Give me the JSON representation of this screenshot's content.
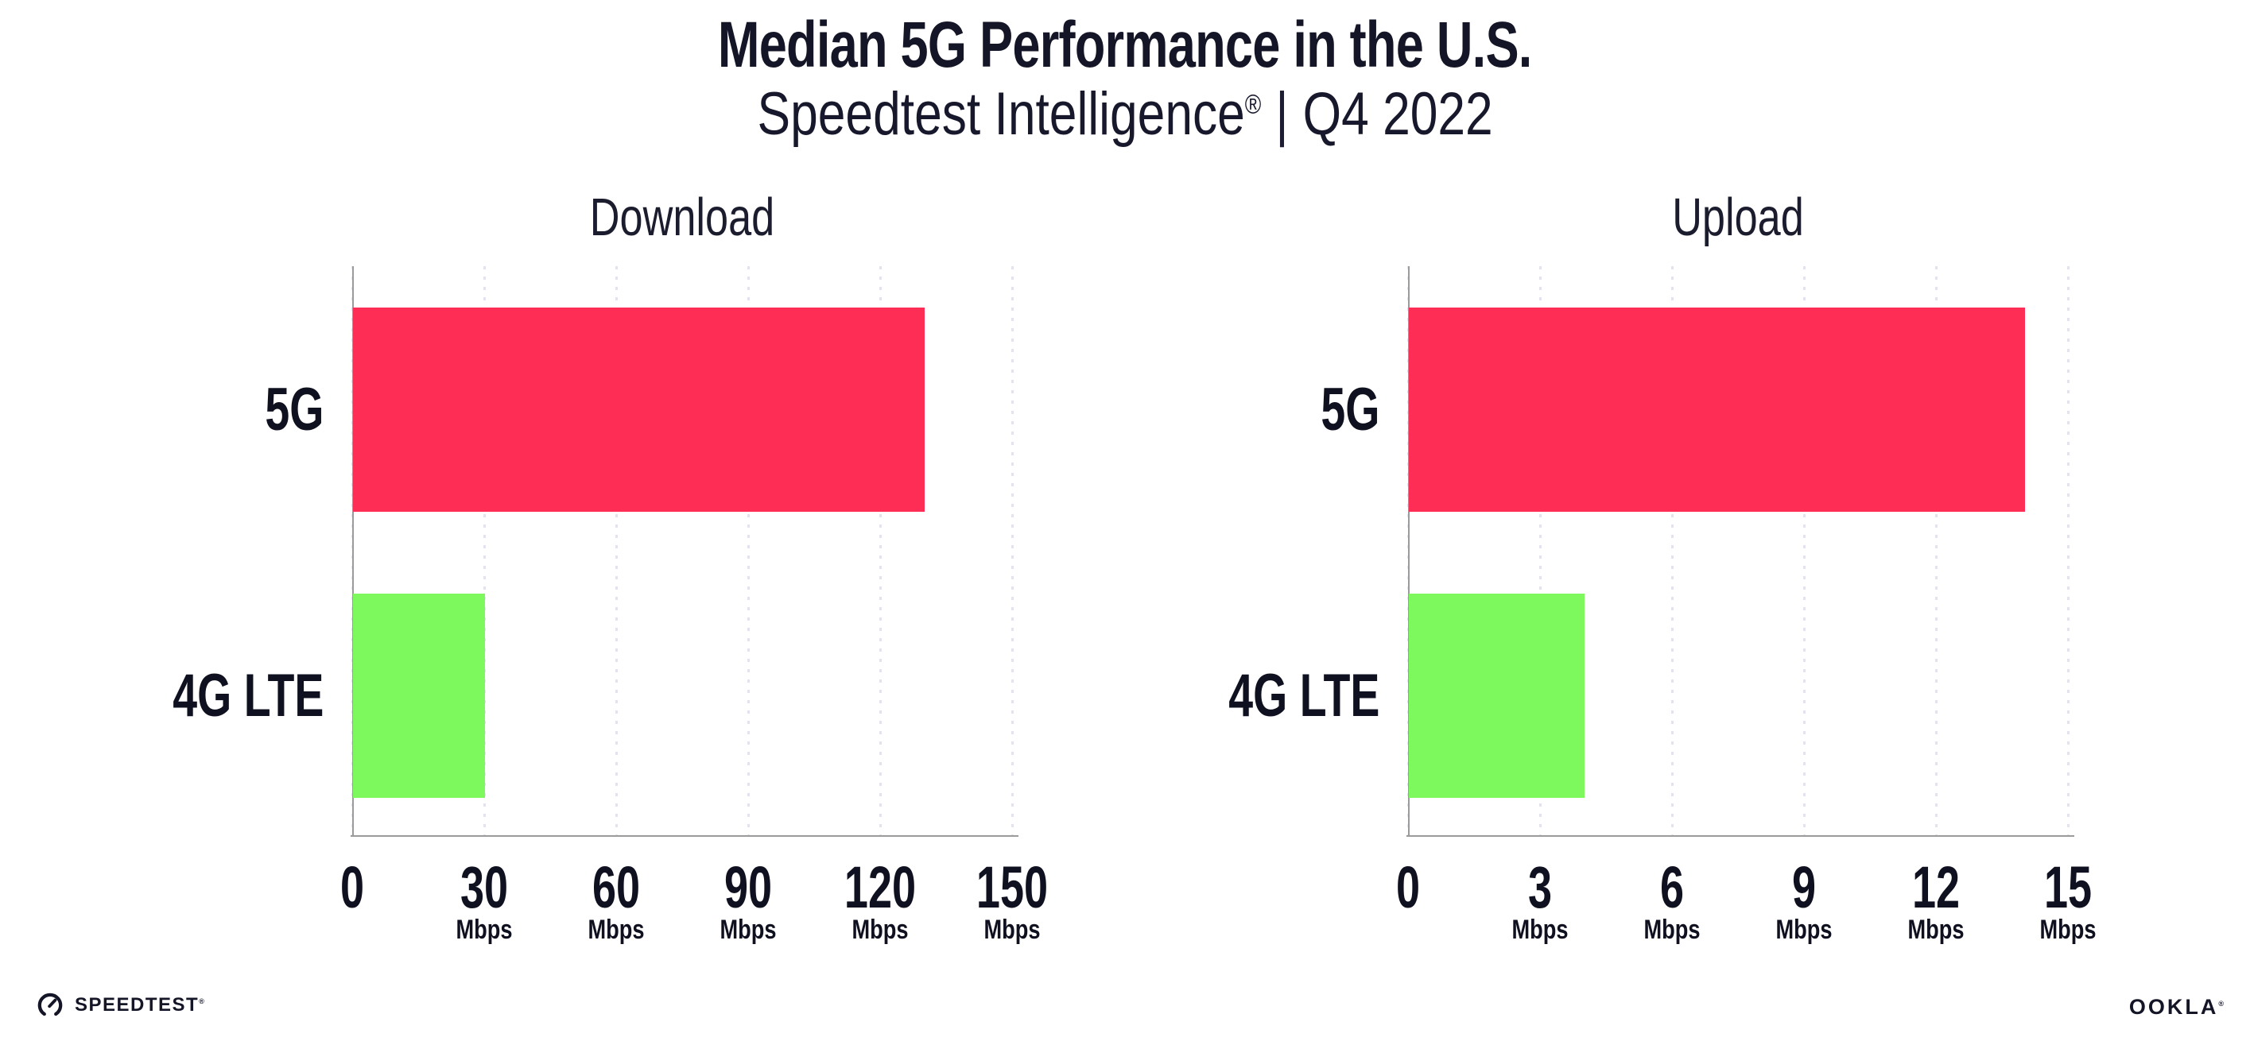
{
  "header": {
    "title": "Median 5G Performance in the U.S.",
    "subtitle_brand": "Speedtest Intelligence",
    "subtitle_registered": "®",
    "subtitle_separator": "|",
    "subtitle_period": "Q4 2022"
  },
  "chart_data": [
    {
      "type": "bar",
      "orientation": "horizontal",
      "title": "Download",
      "categories": [
        "5G",
        "4G LTE"
      ],
      "values": [
        130,
        30
      ],
      "unit": "Mbps",
      "xlim": [
        0,
        150
      ],
      "xticks": [
        0,
        30,
        60,
        90,
        120,
        150
      ],
      "bar_colors": [
        "#fd2d55",
        "#7df95e"
      ],
      "grid": "dotted-vertical",
      "legend": "none"
    },
    {
      "type": "bar",
      "orientation": "horizontal",
      "title": "Upload",
      "categories": [
        "5G",
        "4G LTE"
      ],
      "values": [
        14,
        4
      ],
      "unit": "Mbps",
      "xlim": [
        0,
        15
      ],
      "xticks": [
        0,
        3,
        6,
        9,
        12,
        15
      ],
      "bar_colors": [
        "#fd2d55",
        "#7df95e"
      ],
      "grid": "dotted-vertical",
      "legend": "none"
    }
  ],
  "colors": {
    "bar_5g": "#fd2d55",
    "bar_4g_lte": "#7df95e",
    "axis_line": "#9b9b9b",
    "gridline": "#e3e3ee",
    "text": "#141526",
    "background": "#ffffff"
  },
  "footer": {
    "speedtest_logo_text": "SPEEDTEST",
    "speedtest_mark": "®",
    "ookla_logo_text": "OOKLA",
    "ookla_mark": "®"
  }
}
